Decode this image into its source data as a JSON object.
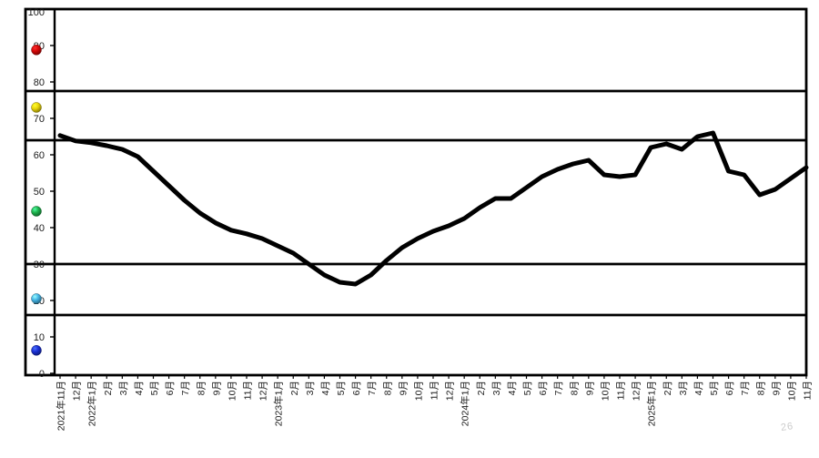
{
  "watermark": "26",
  "chart_data": {
    "type": "line",
    "title": "",
    "xlabel": "",
    "ylabel": "",
    "ylim": [
      0,
      100
    ],
    "grid": "bold-horizontal-zone-lines",
    "legend_position": "none",
    "y_ticks": [
      0,
      10,
      20,
      30,
      40,
      50,
      60,
      70,
      80,
      90,
      100
    ],
    "zone_lines": [
      77.5,
      64,
      30,
      16
    ],
    "zone_markers": [
      {
        "name": "red",
        "color": "#d40808",
        "value": 88.8
      },
      {
        "name": "yellow",
        "color": "#e8d40a",
        "value": 73
      },
      {
        "name": "green",
        "color": "#1eb14c",
        "value": 44.5
      },
      {
        "name": "light-blue",
        "color": "#45b5e6",
        "value": 20.5
      },
      {
        "name": "blue",
        "color": "#1a2fd4",
        "value": 6.3
      }
    ],
    "categories": [
      "2021年11月",
      "12月",
      "2022年1月",
      "2月",
      "3月",
      "4月",
      "5月",
      "6月",
      "7月",
      "8月",
      "9月",
      "10月",
      "11月",
      "12月",
      "2023年1月",
      "2月",
      "3月",
      "4月",
      "5月",
      "6月",
      "7月",
      "8月",
      "9月",
      "10月",
      "11月",
      "12月",
      "2024年1月",
      "2月",
      "3月",
      "4月",
      "5月",
      "6月",
      "7月",
      "8月",
      "9月",
      "10月",
      "11月",
      "12月",
      "2025年1月",
      "2月",
      "3月",
      "4月",
      "5月",
      "6月",
      "7月",
      "8月",
      "9月",
      "10月",
      "11月"
    ],
    "series": [
      {
        "name": "index",
        "color": "#000000",
        "values": [
          65.3,
          63.8,
          63.3,
          62.5,
          61.5,
          59.5,
          55.5,
          51.5,
          47.5,
          44,
          41.3,
          39.3,
          38.3,
          37,
          35,
          33,
          30,
          27,
          25,
          24.5,
          27,
          31,
          34.5,
          37,
          39,
          40.5,
          42.5,
          45.5,
          48,
          48,
          51,
          54,
          56,
          57.5,
          58.5,
          54.5,
          54,
          54.5,
          62,
          63,
          61.5,
          65,
          66,
          55.5,
          54.5,
          49,
          50.5,
          53.5,
          56.5
        ]
      }
    ]
  }
}
